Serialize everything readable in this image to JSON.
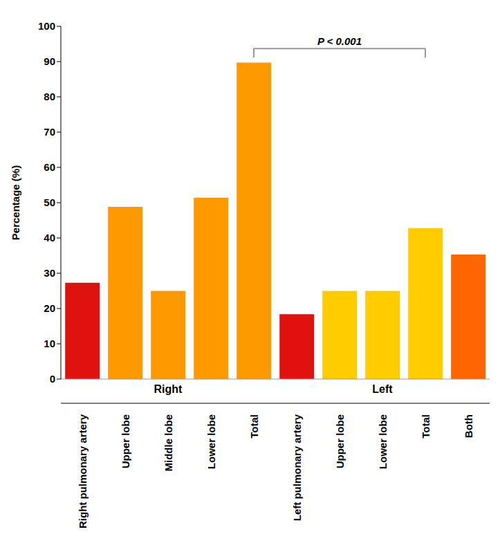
{
  "chart_data": {
    "type": "bar",
    "y_label": "Percentage (%)",
    "categories": [
      "Right pulmonary artery",
      "Upper lobe",
      "Middle lobe",
      "Lower lobe",
      "Total",
      "Left pulmonary artery",
      "Upper lobe",
      "Lower lobe",
      "Total",
      "Both"
    ],
    "values": [
      27.3,
      48.8,
      25,
      51.4,
      89.7,
      18.4,
      25,
      25,
      42.8,
      35.3
    ],
    "colors": [
      "#e0120f",
      "#ff9900",
      "#ff9900",
      "#ff9900",
      "#ff9900",
      "#e0120f",
      "#ffcc00",
      "#ffcc00",
      "#ffcc00",
      "#ff6600"
    ],
    "ylim": [
      0,
      100
    ],
    "yticks": [
      0,
      10,
      20,
      30,
      40,
      50,
      60,
      70,
      80,
      90,
      100
    ],
    "grid": false,
    "groups": [
      {
        "label": "Right",
        "start": 0,
        "end": 4
      },
      {
        "label": "Left",
        "start": 5,
        "end": 9
      }
    ],
    "annotations": [
      {
        "text": "P < 0.001",
        "from": 4,
        "to": 8
      }
    ]
  }
}
